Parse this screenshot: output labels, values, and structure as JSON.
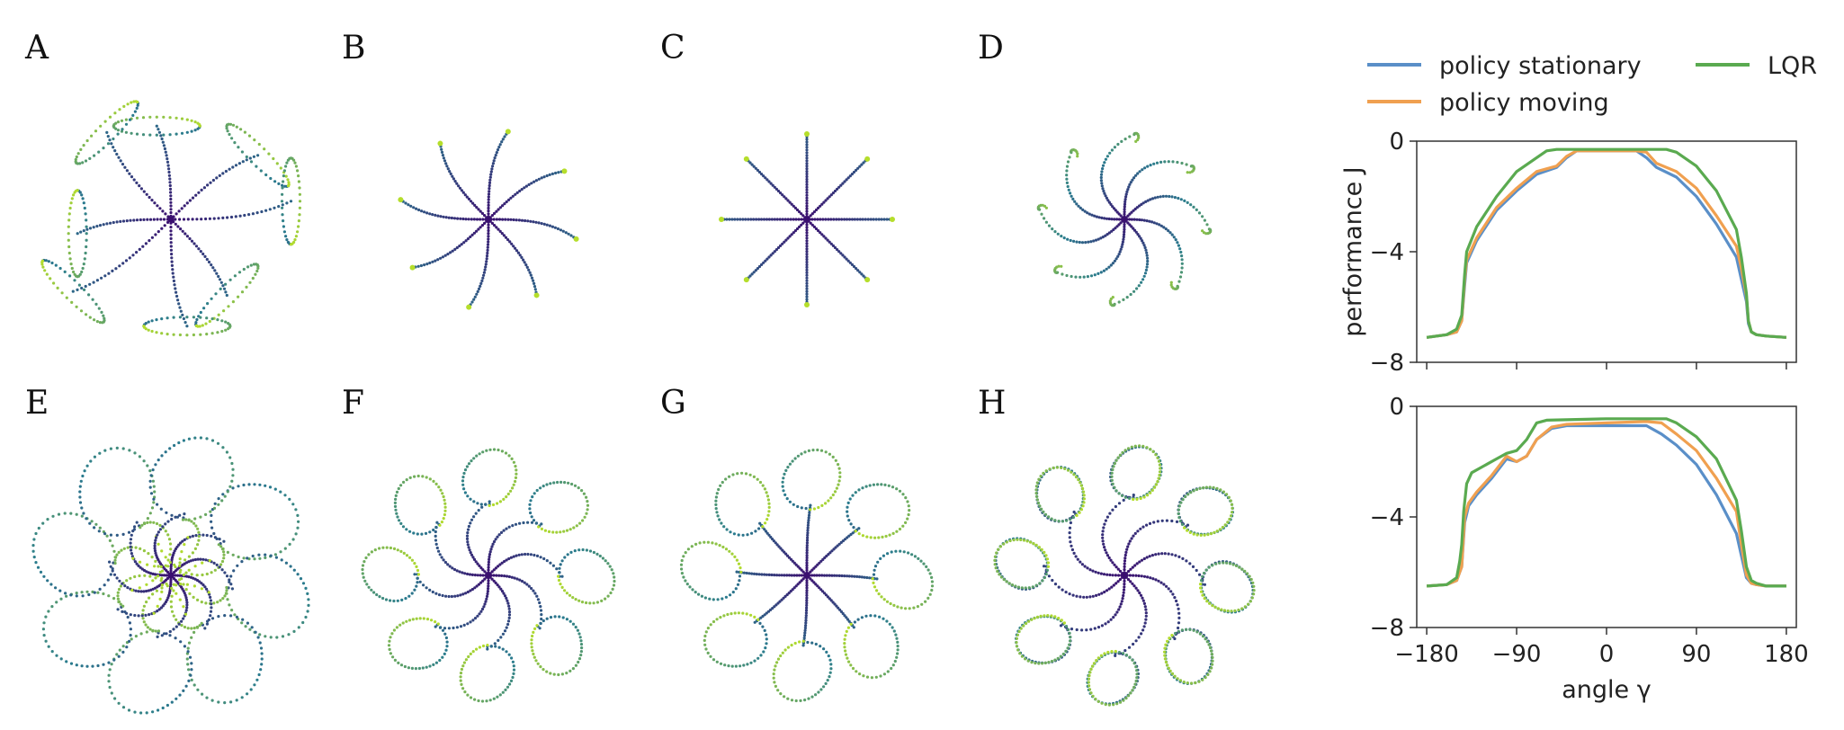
{
  "panels": [
    {
      "letter": "A",
      "kind": "tangled"
    },
    {
      "letter": "B",
      "kind": "star-curved"
    },
    {
      "letter": "C",
      "kind": "star-straight"
    },
    {
      "letter": "D",
      "kind": "spiral-hooks"
    },
    {
      "letter": "E",
      "kind": "loops-large"
    },
    {
      "letter": "F",
      "kind": "loops-medium"
    },
    {
      "letter": "G",
      "kind": "loops-circles"
    },
    {
      "letter": "H",
      "kind": "loops-double"
    }
  ],
  "colors": {
    "traj_start": "#3b0f6f",
    "traj_mid": "#2a7c8e",
    "traj_end": "#b5de2b",
    "policy_stationary": "#5a8fc8",
    "policy_moving": "#f0a050",
    "LQR": "#5aaa50"
  },
  "chart_data": [
    {
      "type": "line",
      "panel": "top",
      "xlim": [
        -190,
        190
      ],
      "ylim": [
        -8,
        0
      ],
      "yticks": [
        0,
        -4,
        -8
      ],
      "ytick_labels": [
        "0",
        "−4",
        "−8"
      ],
      "xticks": [
        -180,
        -90,
        0,
        90,
        180
      ],
      "ylabel": "performance J",
      "series": [
        {
          "name": "policy stationary",
          "color_key": "policy_stationary",
          "x": [
            -180,
            -160,
            -150,
            -145,
            -142,
            -140,
            -130,
            -110,
            -90,
            -70,
            -50,
            -40,
            -30,
            0,
            30,
            40,
            50,
            70,
            90,
            110,
            130,
            135,
            140,
            142,
            145,
            150,
            160,
            180
          ],
          "y": [
            -7.1,
            -7.0,
            -6.9,
            -6.5,
            -5.2,
            -4.4,
            -3.6,
            -2.5,
            -1.8,
            -1.2,
            -0.95,
            -0.6,
            -0.35,
            -0.35,
            -0.35,
            -0.6,
            -0.95,
            -1.3,
            -2.0,
            -3.0,
            -4.2,
            -5.0,
            -5.8,
            -6.6,
            -6.9,
            -7.0,
            -7.05,
            -7.1
          ]
        },
        {
          "name": "policy moving",
          "color_key": "policy_moving",
          "x": [
            -180,
            -160,
            -150,
            -145,
            -142,
            -140,
            -130,
            -110,
            -90,
            -70,
            -50,
            -40,
            -30,
            0,
            30,
            40,
            50,
            70,
            90,
            110,
            130,
            135,
            140,
            142,
            145,
            150,
            160,
            180
          ],
          "y": [
            -7.1,
            -7.0,
            -6.9,
            -6.5,
            -5.0,
            -4.3,
            -3.5,
            -2.4,
            -1.7,
            -1.1,
            -0.9,
            -0.55,
            -0.35,
            -0.35,
            -0.35,
            -0.4,
            -0.8,
            -1.1,
            -1.7,
            -2.7,
            -3.8,
            -4.6,
            -5.6,
            -6.5,
            -6.9,
            -7.0,
            -7.05,
            -7.1
          ]
        },
        {
          "name": "LQR",
          "color_key": "LQR",
          "x": [
            -180,
            -160,
            -150,
            -145,
            -142,
            -140,
            -130,
            -110,
            -90,
            -70,
            -60,
            -50,
            0,
            50,
            60,
            70,
            90,
            110,
            130,
            135,
            140,
            142,
            145,
            150,
            160,
            180
          ],
          "y": [
            -7.1,
            -7.0,
            -6.8,
            -6.3,
            -4.8,
            -4.0,
            -3.1,
            -2.0,
            -1.1,
            -0.6,
            -0.35,
            -0.3,
            -0.3,
            -0.3,
            -0.3,
            -0.4,
            -0.9,
            -1.8,
            -3.2,
            -4.2,
            -5.5,
            -6.5,
            -6.9,
            -7.0,
            -7.05,
            -7.1
          ]
        }
      ]
    },
    {
      "type": "line",
      "panel": "bottom",
      "xlim": [
        -190,
        190
      ],
      "ylim": [
        -8,
        0
      ],
      "yticks": [
        0,
        -4,
        -8
      ],
      "ytick_labels": [
        "0",
        "−4",
        "−8"
      ],
      "xticks": [
        -180,
        -90,
        0,
        90,
        180
      ],
      "xtick_labels": [
        "−180",
        "−90",
        "0",
        "90",
        "180"
      ],
      "xlabel": "angle γ",
      "series": [
        {
          "name": "policy stationary",
          "color_key": "policy_stationary",
          "x": [
            -180,
            -160,
            -150,
            -145,
            -142,
            -138,
            -130,
            -115,
            -100,
            -90,
            -80,
            -70,
            -55,
            -40,
            0,
            40,
            55,
            70,
            90,
            110,
            130,
            135,
            140,
            145,
            150,
            160,
            180
          ],
          "y": [
            -6.5,
            -6.45,
            -6.3,
            -5.8,
            -4.2,
            -3.6,
            -3.2,
            -2.6,
            -1.9,
            -2.0,
            -1.8,
            -1.2,
            -0.8,
            -0.7,
            -0.7,
            -0.7,
            -1.0,
            -1.4,
            -2.1,
            -3.2,
            -4.6,
            -5.4,
            -6.2,
            -6.4,
            -6.45,
            -6.5,
            -6.5
          ]
        },
        {
          "name": "policy moving",
          "color_key": "policy_moving",
          "x": [
            -180,
            -160,
            -150,
            -145,
            -142,
            -138,
            -130,
            -115,
            -100,
            -90,
            -80,
            -70,
            -55,
            -40,
            0,
            40,
            55,
            70,
            90,
            110,
            130,
            135,
            140,
            145,
            150,
            160,
            180
          ],
          "y": [
            -6.5,
            -6.45,
            -6.3,
            -5.8,
            -4.0,
            -3.5,
            -3.1,
            -2.5,
            -1.8,
            -2.0,
            -1.8,
            -1.2,
            -0.75,
            -0.65,
            -0.6,
            -0.55,
            -0.6,
            -1.0,
            -1.6,
            -2.6,
            -3.8,
            -5.0,
            -6.1,
            -6.4,
            -6.45,
            -6.5,
            -6.5
          ]
        },
        {
          "name": "LQR",
          "color_key": "LQR",
          "x": [
            -180,
            -160,
            -150,
            -147,
            -145,
            -143,
            -140,
            -135,
            -125,
            -110,
            -100,
            -90,
            -80,
            -70,
            -60,
            0,
            60,
            70,
            90,
            110,
            130,
            135,
            140,
            145,
            150,
            160,
            180
          ],
          "y": [
            -6.5,
            -6.45,
            -6.2,
            -5.6,
            -5.0,
            -3.8,
            -2.8,
            -2.4,
            -2.2,
            -1.9,
            -1.7,
            -1.6,
            -1.2,
            -0.6,
            -0.5,
            -0.45,
            -0.45,
            -0.6,
            -1.1,
            -1.9,
            -3.4,
            -4.5,
            -5.8,
            -6.3,
            -6.4,
            -6.5,
            -6.5
          ]
        }
      ]
    }
  ],
  "legend": {
    "entries": [
      {
        "label": "policy stationary",
        "color_key": "policy_stationary"
      },
      {
        "label": "policy moving",
        "color_key": "policy_moving"
      },
      {
        "label": "LQR",
        "color_key": "LQR"
      }
    ]
  }
}
